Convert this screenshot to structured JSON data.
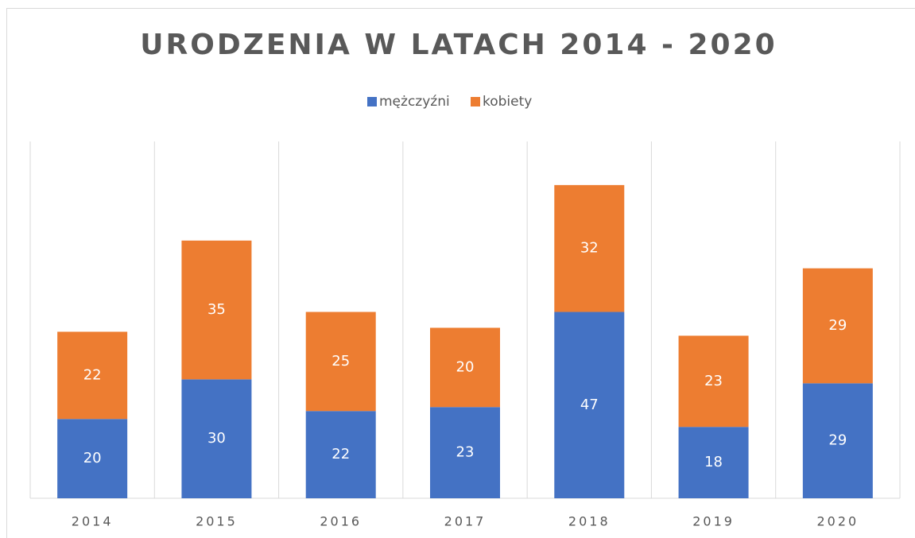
{
  "chart_data": {
    "type": "stacked_bar",
    "title": "URODZENIA W LATACH 2014 - 2020",
    "categories": [
      "2014",
      "2015",
      "2016",
      "2017",
      "2018",
      "2019",
      "2020"
    ],
    "series": [
      {
        "name": "mężczyźni",
        "color": "#4472c4",
        "values": [
          20,
          30,
          22,
          23,
          47,
          18,
          29
        ]
      },
      {
        "name": "kobiety",
        "color": "#ed7d31",
        "values": [
          22,
          35,
          25,
          20,
          32,
          23,
          29
        ]
      }
    ],
    "ylim": [
      0,
      90
    ],
    "legend": "top"
  }
}
